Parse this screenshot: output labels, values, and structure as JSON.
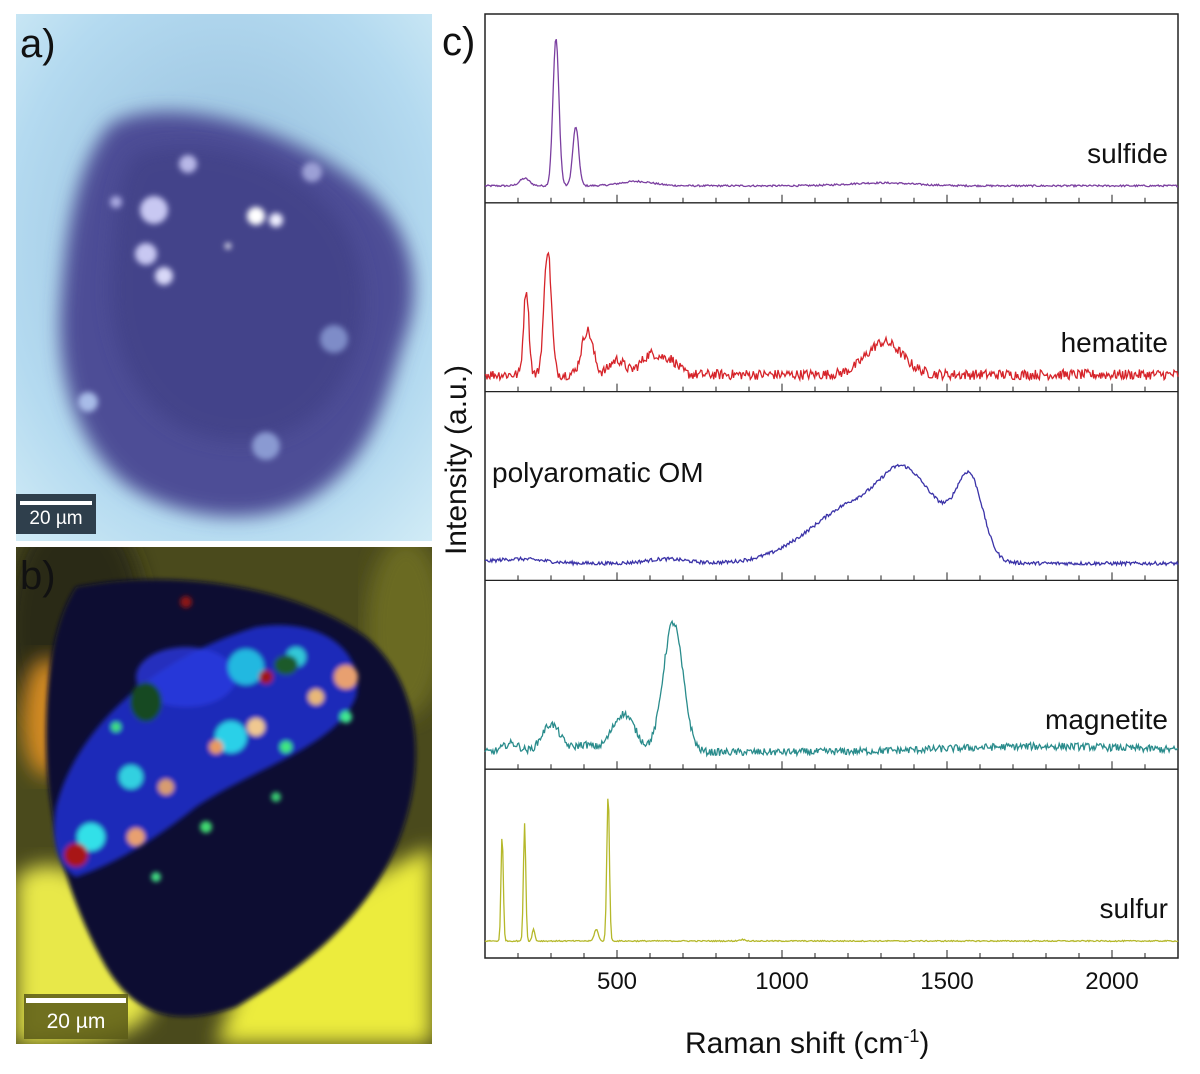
{
  "panels": {
    "a": {
      "label": "a)",
      "scale_bar": "20 µm"
    },
    "b": {
      "label": "b)",
      "scale_bar": "20 µm"
    },
    "c": {
      "label": "c)"
    }
  },
  "chart_data": {
    "type": "line",
    "xlabel": "Raman shift (cm",
    "xlabel_sup": "-1",
    "xlabel_close": ")",
    "ylabel": "Intensity (a.u.)",
    "xlim": [
      100,
      2200
    ],
    "xticks": [
      500,
      1000,
      1500,
      2000
    ],
    "xtick_labels": [
      "500",
      "1000",
      "1500",
      "2000"
    ],
    "series": [
      {
        "name": "sulfide",
        "color": "#7b3fa0",
        "peaks": [
          [
            220,
            0.05,
            15
          ],
          [
            315,
            1.0,
            9
          ],
          [
            375,
            0.4,
            9
          ],
          [
            560,
            0.03,
            50
          ],
          [
            1300,
            0.02,
            100
          ]
        ],
        "noise": 0.006
      },
      {
        "name": "hematite",
        "color": "#d6242a",
        "peaks": [
          [
            225,
            0.58,
            8
          ],
          [
            290,
            0.85,
            11
          ],
          [
            410,
            0.3,
            17
          ],
          [
            500,
            0.1,
            22
          ],
          [
            605,
            0.14,
            32
          ],
          [
            665,
            0.08,
            22
          ],
          [
            1310,
            0.22,
            55
          ]
        ],
        "noise": 0.035
      },
      {
        "name": "polyaromatic OM",
        "color": "#3b33a8",
        "peaks": [
          [
            200,
            0.03,
            80
          ],
          [
            650,
            0.03,
            60
          ],
          [
            1250,
            0.43,
            150
          ],
          [
            1365,
            0.3,
            60
          ],
          [
            1570,
            0.52,
            40
          ],
          [
            1470,
            0.2,
            60
          ]
        ],
        "noise": 0.012
      },
      {
        "name": "magnetite",
        "color": "#2a8c8c",
        "peaks": [
          [
            180,
            0.06,
            25
          ],
          [
            300,
            0.19,
            28
          ],
          [
            400,
            0.05,
            30
          ],
          [
            520,
            0.26,
            35
          ],
          [
            670,
            0.88,
            30
          ],
          [
            1800,
            0.04,
            300
          ]
        ],
        "noise": 0.025
      },
      {
        "name": "sulfur",
        "color": "#b5b82a",
        "peaks": [
          [
            152,
            0.72,
            3.5
          ],
          [
            220,
            0.8,
            3.5
          ],
          [
            247,
            0.08,
            4
          ],
          [
            437,
            0.08,
            6
          ],
          [
            473,
            1.0,
            4
          ],
          [
            880,
            0.01,
            10
          ]
        ],
        "noise": 0.004
      }
    ]
  }
}
